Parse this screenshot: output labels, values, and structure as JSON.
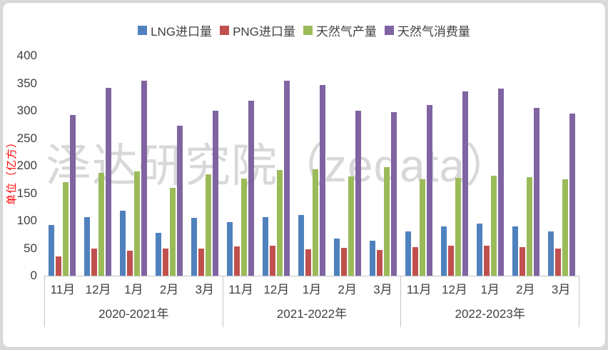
{
  "watermark": "泽达研究院（zedata）",
  "y_axis": {
    "title": "单位（亿方）",
    "ticks": [
      400,
      350,
      300,
      250,
      200,
      150,
      100,
      50,
      0
    ],
    "max": 400
  },
  "chart_data": {
    "type": "bar",
    "title": "",
    "xlabel": "",
    "ylabel": "单位（亿方）",
    "ylim": [
      0,
      400
    ],
    "y_tick_step": 50,
    "grid": false,
    "legend_position": "top",
    "unit": "亿方",
    "groups": [
      {
        "label": "2020-2021年",
        "months": [
          "11月",
          "12月",
          "1月",
          "2月",
          "3月"
        ]
      },
      {
        "label": "2021-2022年",
        "months": [
          "11月",
          "12月",
          "1月",
          "2月",
          "3月"
        ]
      },
      {
        "label": "2022-2023年",
        "months": [
          "11月",
          "12月",
          "1月",
          "2月",
          "3月"
        ]
      }
    ],
    "series": [
      {
        "name": "LNG进口量",
        "key": "lng-imports",
        "color": "#4f81bd",
        "values": [
          [
            92,
            106,
            118,
            78,
            105
          ],
          [
            97,
            106,
            110,
            67,
            64
          ],
          [
            80,
            89,
            95,
            89,
            80
          ]
        ]
      },
      {
        "name": "PNG进口量",
        "key": "png-imports",
        "color": "#c0504d",
        "values": [
          [
            35,
            50,
            45,
            49,
            50
          ],
          [
            53,
            55,
            48,
            51,
            47
          ],
          [
            52,
            55,
            54,
            52,
            49
          ]
        ]
      },
      {
        "name": "天然气产量",
        "key": "gas-production",
        "color": "#9bbb59",
        "values": [
          [
            170,
            187,
            190,
            160,
            184
          ],
          [
            176,
            192,
            193,
            180,
            197
          ],
          [
            175,
            178,
            182,
            179,
            175
          ]
        ]
      },
      {
        "name": "天然气消费量",
        "key": "gas-consumption",
        "color": "#8064a2",
        "values": [
          [
            292,
            341,
            354,
            273,
            300
          ],
          [
            318,
            355,
            347,
            300,
            297
          ],
          [
            311,
            335,
            340,
            305,
            295
          ]
        ]
      }
    ]
  }
}
